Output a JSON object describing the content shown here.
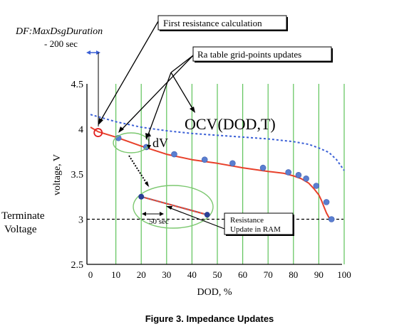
{
  "chart_data": {
    "type": "line",
    "xlabel": "DOD, %",
    "ylabel": "voltage, V",
    "xlim": [
      0,
      100
    ],
    "ylim": [
      2.5,
      4.5
    ],
    "x_ticks": [
      0,
      10,
      20,
      30,
      40,
      50,
      60,
      70,
      80,
      90,
      100
    ],
    "y_ticks": [
      2.5,
      3,
      3.5,
      4,
      4.5
    ],
    "grid": "vertical green lines every 10% DOD",
    "series": [
      {
        "name": "OCV(DOD,T)",
        "style": "dotted",
        "color": "#3a5fd6",
        "x": [
          0,
          10,
          20,
          30,
          40,
          50,
          60,
          70,
          80,
          86,
          90,
          94,
          97,
          100
        ],
        "y": [
          4.16,
          4.08,
          4.02,
          3.98,
          3.95,
          3.93,
          3.91,
          3.89,
          3.86,
          3.83,
          3.79,
          3.74,
          3.66,
          3.54
        ]
      },
      {
        "name": "voltage",
        "style": "solid",
        "color": "#e8402a",
        "x": [
          0,
          3,
          10,
          20,
          30,
          40,
          50,
          60,
          70,
          76,
          80,
          83,
          86,
          88,
          90,
          91,
          92,
          93,
          94,
          95
        ],
        "y": [
          4.02,
          3.97,
          3.91,
          3.81,
          3.72,
          3.66,
          3.62,
          3.57,
          3.53,
          3.51,
          3.48,
          3.45,
          3.4,
          3.34,
          3.27,
          3.21,
          3.14,
          3.07,
          3.02,
          3.0
        ]
      }
    ],
    "grid_points": [
      {
        "x": 11,
        "y": 3.9
      },
      {
        "x": 22,
        "y": 3.8
      },
      {
        "x": 33,
        "y": 3.72
      },
      {
        "x": 45,
        "y": 3.66
      },
      {
        "x": 56,
        "y": 3.62
      },
      {
        "x": 68,
        "y": 3.57
      },
      {
        "x": 78,
        "y": 3.52
      },
      {
        "x": 82,
        "y": 3.49
      },
      {
        "x": 85,
        "y": 3.45
      },
      {
        "x": 89,
        "y": 3.37
      },
      {
        "x": 93,
        "y": 3.19
      },
      {
        "x": 95,
        "y": 3.0
      }
    ],
    "first_calc_point": {
      "x": 3,
      "y": 3.96
    },
    "terminate_voltage": 3.0,
    "inset": {
      "start": {
        "x": 20,
        "y": 3.25
      },
      "end": {
        "x": 46,
        "y": 3.05
      }
    }
  },
  "labels": {
    "figure_caption": "Figure 3. Impedance Updates",
    "duration_line1": "DF:MaxDsgDuration",
    "duration_line2": "- 200 sec",
    "first_resistance": "First resistance calculation",
    "ra_table": "Ra table grid-points updates",
    "ocv": "OCV(DOD,T)",
    "dv": "dV",
    "terminate_line1": "Terminate",
    "terminate_line2": "Voltage",
    "fifty_sec": "50 sec",
    "resistance_line1": "Resistance",
    "resistance_line2": "Update in RAM"
  },
  "colors": {
    "grid": "#5fc35a",
    "voltage": "#e8402a",
    "ocv": "#3a5fd6",
    "marker": "#5a7ed0",
    "marker_dark": "#2a3f96",
    "annotation_circle": "#7cc870",
    "first_calc_circle": "#e02020",
    "terminate_line": "#000000"
  }
}
